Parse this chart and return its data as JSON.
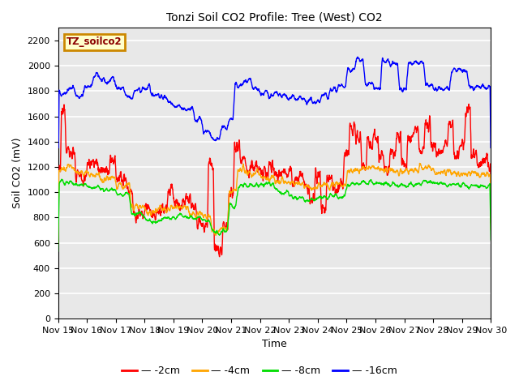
{
  "title": "Tonzi Soil CO2 Profile: Tree (West) CO2",
  "xlabel": "Time",
  "ylabel": "Soil CO2 (mV)",
  "watermark": "TZ_soilco2",
  "ylim": [
    0,
    2300
  ],
  "yticks": [
    0,
    200,
    400,
    600,
    800,
    1000,
    1200,
    1400,
    1600,
    1800,
    2000,
    2200
  ],
  "xlim_days": [
    15,
    30
  ],
  "xtick_labels": [
    "Nov 15",
    "Nov 16",
    "Nov 17",
    "Nov 18",
    "Nov 19",
    "Nov 20",
    "Nov 21",
    "Nov 22",
    "Nov 23",
    "Nov 24",
    "Nov 25",
    "Nov 26",
    "Nov 27",
    "Nov 28",
    "Nov 29",
    "Nov 30"
  ],
  "colors": {
    "-2cm": "#ff0000",
    "-4cm": "#ffa500",
    "-8cm": "#00dd00",
    "-16cm": "#0000ff"
  },
  "legend_entries": [
    "-2cm",
    "-4cm",
    "-8cm",
    "-16cm"
  ],
  "plot_bg": "#e8e8e8",
  "fig_bg": "#ffffff"
}
